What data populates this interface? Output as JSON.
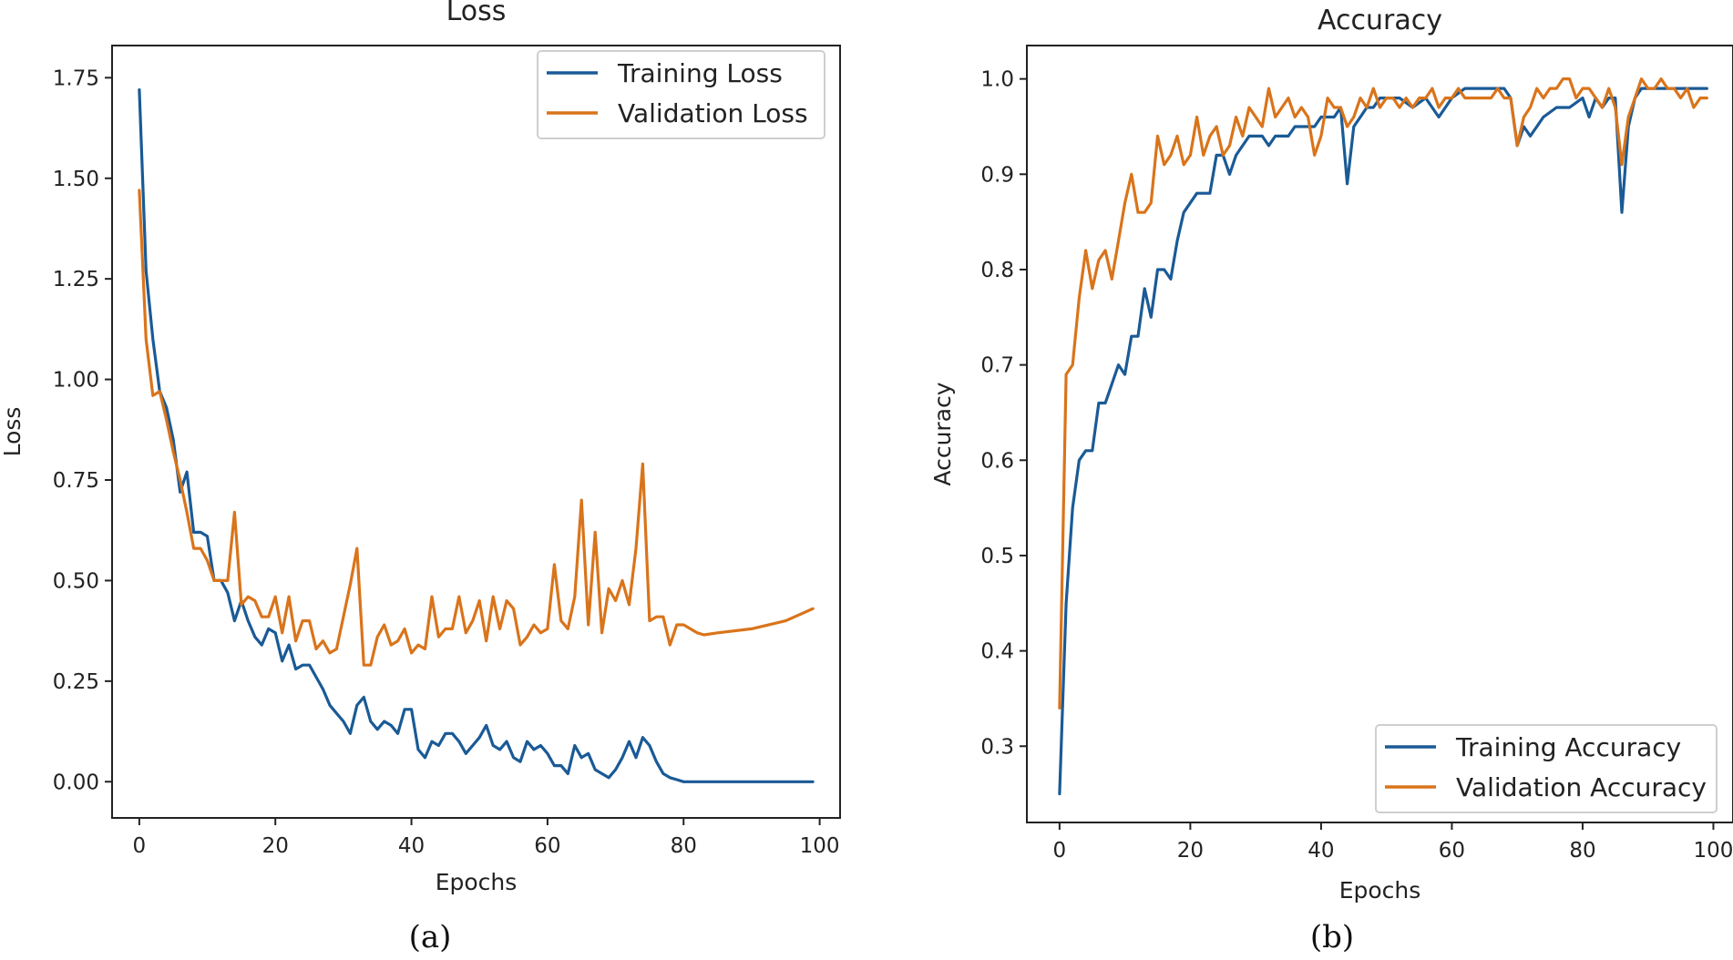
{
  "colors": {
    "training": "#1a5a96",
    "validation": "#d9741b"
  },
  "chart_data": [
    {
      "type": "line",
      "title": "Loss",
      "xlabel": "Epochs",
      "ylabel": "Loss",
      "caption": "(a)",
      "xlim": [
        -4,
        103
      ],
      "ylim": [
        -0.09,
        1.83
      ],
      "xticks": [
        0,
        20,
        40,
        60,
        80,
        100
      ],
      "xtick_labels": [
        "0",
        "20",
        "40",
        "60",
        "80",
        "100"
      ],
      "yticks": [
        0.0,
        0.25,
        0.5,
        0.75,
        1.0,
        1.25,
        1.5,
        1.75
      ],
      "ytick_labels": [
        "0.00",
        "0.25",
        "0.50",
        "0.75",
        "1.00",
        "1.25",
        "1.50",
        "1.75"
      ],
      "legend_position": "top-right",
      "series": [
        {
          "name": "Training Loss",
          "color_key": "training",
          "x": [
            0,
            1,
            2,
            3,
            4,
            5,
            6,
            7,
            8,
            9,
            10,
            11,
            12,
            13,
            14,
            15,
            16,
            17,
            18,
            19,
            20,
            21,
            22,
            23,
            24,
            25,
            26,
            27,
            28,
            29,
            30,
            31,
            32,
            33,
            34,
            35,
            36,
            37,
            38,
            39,
            40,
            41,
            42,
            43,
            44,
            45,
            46,
            47,
            48,
            49,
            50,
            51,
            52,
            53,
            54,
            55,
            56,
            57,
            58,
            59,
            60,
            61,
            62,
            63,
            64,
            65,
            66,
            67,
            68,
            69,
            70,
            71,
            72,
            73,
            74,
            75,
            76,
            77,
            78,
            79,
            80,
            85,
            90,
            95,
            99
          ],
          "values": [
            1.72,
            1.27,
            1.1,
            0.97,
            0.93,
            0.85,
            0.72,
            0.77,
            0.62,
            0.62,
            0.61,
            0.5,
            0.5,
            0.47,
            0.4,
            0.45,
            0.4,
            0.36,
            0.34,
            0.38,
            0.37,
            0.3,
            0.34,
            0.28,
            0.29,
            0.29,
            0.26,
            0.23,
            0.19,
            0.17,
            0.15,
            0.12,
            0.19,
            0.21,
            0.15,
            0.13,
            0.15,
            0.14,
            0.12,
            0.18,
            0.18,
            0.08,
            0.06,
            0.1,
            0.09,
            0.12,
            0.12,
            0.1,
            0.07,
            0.09,
            0.11,
            0.14,
            0.09,
            0.08,
            0.1,
            0.06,
            0.05,
            0.1,
            0.08,
            0.09,
            0.07,
            0.04,
            0.04,
            0.02,
            0.09,
            0.06,
            0.07,
            0.03,
            0.02,
            0.01,
            0.03,
            0.06,
            0.1,
            0.06,
            0.11,
            0.09,
            0.05,
            0.02,
            0.01,
            0.005,
            0.0,
            0.0,
            0.0,
            0.0,
            0.0
          ]
        },
        {
          "name": "Validation Loss",
          "color_key": "validation",
          "x": [
            0,
            1,
            2,
            3,
            4,
            5,
            6,
            7,
            8,
            9,
            10,
            11,
            12,
            13,
            14,
            15,
            16,
            17,
            18,
            19,
            20,
            21,
            22,
            23,
            24,
            25,
            26,
            27,
            28,
            29,
            30,
            31,
            32,
            33,
            34,
            35,
            36,
            37,
            38,
            39,
            40,
            41,
            42,
            43,
            44,
            45,
            46,
            47,
            48,
            49,
            50,
            51,
            52,
            53,
            54,
            55,
            56,
            57,
            58,
            59,
            60,
            61,
            62,
            63,
            64,
            65,
            66,
            67,
            68,
            69,
            70,
            71,
            72,
            73,
            74,
            75,
            76,
            77,
            78,
            79,
            80,
            81,
            82,
            83,
            85,
            90,
            95,
            99
          ],
          "values": [
            1.47,
            1.1,
            0.96,
            0.97,
            0.9,
            0.82,
            0.75,
            0.67,
            0.58,
            0.58,
            0.55,
            0.5,
            0.5,
            0.5,
            0.67,
            0.44,
            0.46,
            0.45,
            0.41,
            0.41,
            0.46,
            0.37,
            0.46,
            0.35,
            0.4,
            0.4,
            0.33,
            0.35,
            0.32,
            0.33,
            0.41,
            0.49,
            0.58,
            0.29,
            0.29,
            0.36,
            0.39,
            0.34,
            0.35,
            0.38,
            0.32,
            0.34,
            0.33,
            0.46,
            0.36,
            0.38,
            0.38,
            0.46,
            0.37,
            0.4,
            0.45,
            0.35,
            0.46,
            0.38,
            0.45,
            0.43,
            0.34,
            0.36,
            0.39,
            0.37,
            0.38,
            0.54,
            0.4,
            0.38,
            0.46,
            0.7,
            0.39,
            0.62,
            0.37,
            0.48,
            0.45,
            0.5,
            0.44,
            0.58,
            0.79,
            0.4,
            0.41,
            0.41,
            0.34,
            0.39,
            0.39,
            0.38,
            0.37,
            0.365,
            0.37,
            0.38,
            0.4,
            0.43
          ]
        }
      ]
    },
    {
      "type": "line",
      "title": "Accuracy",
      "xlabel": "Epochs",
      "ylabel": "Accuracy",
      "caption": "(b)",
      "xlim": [
        -5,
        103
      ],
      "ylim": [
        0.22,
        1.035
      ],
      "xticks": [
        0,
        20,
        40,
        60,
        80,
        100
      ],
      "xtick_labels": [
        "0",
        "20",
        "40",
        "60",
        "80",
        "100"
      ],
      "yticks": [
        0.3,
        0.4,
        0.5,
        0.6,
        0.7,
        0.8,
        0.9,
        1.0
      ],
      "ytick_labels": [
        "0.3",
        "0.4",
        "0.5",
        "0.6",
        "0.7",
        "0.8",
        "0.9",
        "1.0"
      ],
      "legend_position": "bottom-right",
      "series": [
        {
          "name": "Training Accuracy",
          "color_key": "training",
          "x": [
            0,
            1,
            2,
            3,
            4,
            5,
            6,
            7,
            8,
            9,
            10,
            11,
            12,
            13,
            14,
            15,
            16,
            17,
            18,
            19,
            20,
            21,
            22,
            23,
            24,
            25,
            26,
            27,
            28,
            29,
            30,
            31,
            32,
            33,
            34,
            35,
            36,
            37,
            38,
            39,
            40,
            41,
            42,
            43,
            44,
            45,
            46,
            47,
            48,
            49,
            50,
            52,
            54,
            56,
            58,
            60,
            62,
            64,
            66,
            68,
            69,
            70,
            71,
            72,
            73,
            74,
            76,
            78,
            80,
            81,
            82,
            83,
            84,
            85,
            86,
            87,
            88,
            89,
            90,
            92,
            94,
            96,
            99
          ],
          "values": [
            0.25,
            0.45,
            0.55,
            0.6,
            0.61,
            0.61,
            0.66,
            0.66,
            0.68,
            0.7,
            0.69,
            0.73,
            0.73,
            0.78,
            0.75,
            0.8,
            0.8,
            0.79,
            0.83,
            0.86,
            0.87,
            0.88,
            0.88,
            0.88,
            0.92,
            0.92,
            0.9,
            0.92,
            0.93,
            0.94,
            0.94,
            0.94,
            0.93,
            0.94,
            0.94,
            0.94,
            0.95,
            0.95,
            0.95,
            0.95,
            0.96,
            0.96,
            0.96,
            0.97,
            0.89,
            0.95,
            0.96,
            0.97,
            0.97,
            0.98,
            0.98,
            0.98,
            0.97,
            0.98,
            0.96,
            0.98,
            0.99,
            0.99,
            0.99,
            0.99,
            0.98,
            0.93,
            0.95,
            0.94,
            0.95,
            0.96,
            0.97,
            0.97,
            0.98,
            0.96,
            0.98,
            0.97,
            0.98,
            0.98,
            0.86,
            0.95,
            0.98,
            0.99,
            0.99,
            0.99,
            0.99,
            0.99,
            0.99
          ]
        },
        {
          "name": "Validation Accuracy",
          "color_key": "validation",
          "x": [
            0,
            1,
            2,
            3,
            4,
            5,
            6,
            7,
            8,
            9,
            10,
            11,
            12,
            13,
            14,
            15,
            16,
            17,
            18,
            19,
            20,
            21,
            22,
            23,
            24,
            25,
            26,
            27,
            28,
            29,
            30,
            31,
            32,
            33,
            34,
            35,
            36,
            37,
            38,
            39,
            40,
            41,
            42,
            43,
            44,
            45,
            46,
            47,
            48,
            49,
            50,
            51,
            52,
            53,
            54,
            55,
            56,
            57,
            58,
            59,
            60,
            61,
            62,
            63,
            64,
            65,
            66,
            67,
            68,
            69,
            70,
            71,
            72,
            73,
            74,
            75,
            76,
            77,
            78,
            79,
            80,
            81,
            82,
            83,
            84,
            85,
            86,
            87,
            88,
            89,
            90,
            91,
            92,
            93,
            94,
            95,
            96,
            97,
            98,
            99
          ],
          "values": [
            0.34,
            0.69,
            0.7,
            0.77,
            0.82,
            0.78,
            0.81,
            0.82,
            0.79,
            0.83,
            0.87,
            0.9,
            0.86,
            0.86,
            0.87,
            0.94,
            0.91,
            0.92,
            0.94,
            0.91,
            0.92,
            0.96,
            0.92,
            0.94,
            0.95,
            0.92,
            0.93,
            0.96,
            0.94,
            0.97,
            0.96,
            0.95,
            0.99,
            0.96,
            0.97,
            0.98,
            0.96,
            0.97,
            0.96,
            0.92,
            0.94,
            0.98,
            0.97,
            0.97,
            0.95,
            0.96,
            0.98,
            0.97,
            0.99,
            0.97,
            0.98,
            0.98,
            0.97,
            0.98,
            0.97,
            0.98,
            0.98,
            0.99,
            0.97,
            0.98,
            0.98,
            0.99,
            0.98,
            0.98,
            0.98,
            0.98,
            0.98,
            0.99,
            0.98,
            0.98,
            0.93,
            0.96,
            0.97,
            0.99,
            0.98,
            0.99,
            0.99,
            1.0,
            1.0,
            0.98,
            0.99,
            0.99,
            0.98,
            0.97,
            0.99,
            0.97,
            0.91,
            0.96,
            0.98,
            1.0,
            0.99,
            0.99,
            1.0,
            0.99,
            0.99,
            0.98,
            0.99,
            0.97,
            0.98,
            0.98
          ]
        }
      ]
    }
  ]
}
